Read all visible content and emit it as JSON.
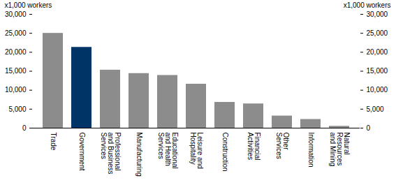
{
  "chart_data": {
    "type": "bar",
    "ylabel": "x1,000 workers",
    "categories": [
      "Trade",
      "Government",
      "Professional and Business Services",
      "Manufacturing",
      "Educational and Health Services",
      "Leisure and Hospitality",
      "Construction",
      "Financial Activities",
      "Other Services",
      "Information",
      "Natural Resources and Mining"
    ],
    "values": [
      25000,
      21300,
      15300,
      14400,
      13900,
      11600,
      6800,
      6400,
      3200,
      2300,
      500
    ],
    "colors": [
      "#8c8c8c",
      "#003366",
      "#8c8c8c",
      "#8c8c8c",
      "#8c8c8c",
      "#8c8c8c",
      "#8c8c8c",
      "#8c8c8c",
      "#8c8c8c",
      "#8c8c8c",
      "#8c8c8c"
    ],
    "ylim": [
      0,
      30000
    ],
    "yticks": [
      0,
      {
        "value": 5000,
        "label": "5,000"
      },
      {
        "value": 10000,
        "label": "10,000"
      },
      {
        "value": 15000,
        "label": "15,000"
      },
      {
        "value": 20000,
        "label": "20,000"
      },
      {
        "value": 25000,
        "label": "25,000"
      },
      {
        "value": 30000,
        "label": "30,000"
      }
    ],
    "grid": false
  }
}
